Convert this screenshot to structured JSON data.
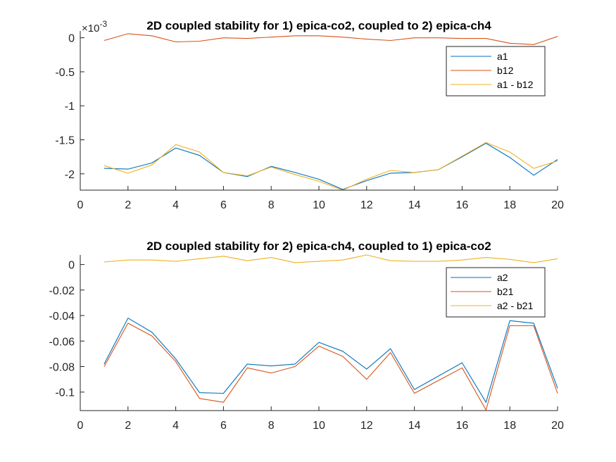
{
  "colors": {
    "blue": "#0072BD",
    "orange": "#D95319",
    "yellow": "#EDB120"
  },
  "chart_data": [
    {
      "type": "line",
      "title": "2D coupled stability for 1) epica-co2, coupled to 2) epica-ch4",
      "exponent_label": "×10",
      "exponent_power": "-3",
      "xlim": [
        0,
        20
      ],
      "ylim": [
        -0.00224,
        0.0001
      ],
      "xticks": [
        0,
        2,
        4,
        6,
        8,
        10,
        12,
        14,
        16,
        18,
        20
      ],
      "xtick_labels": [
        "0",
        "2",
        "4",
        "6",
        "8",
        "10",
        "12",
        "14",
        "16",
        "18",
        "20"
      ],
      "yticks": [
        0,
        -0.0005,
        -0.001,
        -0.0015,
        -0.002
      ],
      "ytick_labels": [
        "0",
        "-0.5",
        "-1",
        "-1.5",
        "-2"
      ],
      "legend_position": "top-right",
      "x": [
        1,
        2,
        3,
        4,
        5,
        6,
        7,
        8,
        9,
        10,
        11,
        12,
        13,
        14,
        15,
        16,
        17,
        18,
        19,
        20
      ],
      "series": [
        {
          "name": "a1",
          "color": "blue",
          "values": [
            -0.00192,
            -0.00193,
            -0.00184,
            -0.00162,
            -0.00173,
            -0.00198,
            -0.00204,
            -0.00189,
            -0.00198,
            -0.00208,
            -0.00223,
            -0.0021,
            -0.00199,
            -0.00198,
            -0.00194,
            -0.00175,
            -0.00155,
            -0.00176,
            -0.00202,
            -0.00179
          ]
        },
        {
          "name": "b12",
          "color": "orange",
          "values": [
            -4e-05,
            6e-05,
            3e-05,
            -6e-05,
            -5e-05,
            0.0,
            -1e-05,
            1e-05,
            3e-05,
            3e-05,
            1e-05,
            -2e-05,
            -4e-05,
            0.0,
            0.0,
            -1e-05,
            -1e-05,
            -8e-05,
            -0.0001,
            2e-05
          ]
        },
        {
          "name": "a1 - b12",
          "color": "yellow",
          "values": [
            -0.00188,
            -0.00199,
            -0.00187,
            -0.00157,
            -0.00168,
            -0.00198,
            -0.00203,
            -0.0019,
            -0.00201,
            -0.00211,
            -0.00224,
            -0.00208,
            -0.00195,
            -0.00198,
            -0.00194,
            -0.00174,
            -0.00154,
            -0.00168,
            -0.00192,
            -0.00181
          ]
        }
      ]
    },
    {
      "type": "line",
      "title": "2D coupled stability for 2) epica-ch4, coupled to 1) epica-co2",
      "xlim": [
        0,
        20
      ],
      "ylim": [
        -0.1145,
        0.0075
      ],
      "xticks": [
        0,
        2,
        4,
        6,
        8,
        10,
        12,
        14,
        16,
        18,
        20
      ],
      "xtick_labels": [
        "0",
        "2",
        "4",
        "6",
        "8",
        "10",
        "12",
        "14",
        "16",
        "18",
        "20"
      ],
      "yticks": [
        0,
        -0.02,
        -0.04,
        -0.06,
        -0.08,
        -0.1
      ],
      "ytick_labels": [
        "0",
        "-0.02",
        "-0.04",
        "-0.06",
        "-0.08",
        "-0.1"
      ],
      "legend_position": "top-right",
      "x": [
        1,
        2,
        3,
        4,
        5,
        6,
        7,
        8,
        9,
        10,
        11,
        12,
        13,
        14,
        15,
        16,
        17,
        18,
        19,
        20
      ],
      "series": [
        {
          "name": "a2",
          "color": "blue",
          "values": [
            -0.078,
            -0.042,
            -0.053,
            -0.074,
            -0.1005,
            -0.101,
            -0.078,
            -0.0795,
            -0.078,
            -0.061,
            -0.068,
            -0.082,
            -0.066,
            -0.098,
            -0.0875,
            -0.077,
            -0.108,
            -0.044,
            -0.046,
            -0.097
          ]
        },
        {
          "name": "b21",
          "color": "orange",
          "values": [
            -0.08,
            -0.046,
            -0.056,
            -0.076,
            -0.105,
            -0.108,
            -0.081,
            -0.085,
            -0.08,
            -0.064,
            -0.072,
            -0.09,
            -0.069,
            -0.101,
            -0.091,
            -0.081,
            -0.114,
            -0.048,
            -0.048,
            -0.101
          ]
        },
        {
          "name": "a2 - b21",
          "color": "yellow",
          "values": [
            0.002,
            0.0035,
            0.0035,
            0.0025,
            0.0045,
            0.0065,
            0.003,
            0.0055,
            0.0015,
            0.0025,
            0.0035,
            0.0075,
            0.003,
            0.0025,
            0.0025,
            0.0035,
            0.0055,
            0.004,
            0.0015,
            0.0045
          ]
        }
      ]
    }
  ]
}
